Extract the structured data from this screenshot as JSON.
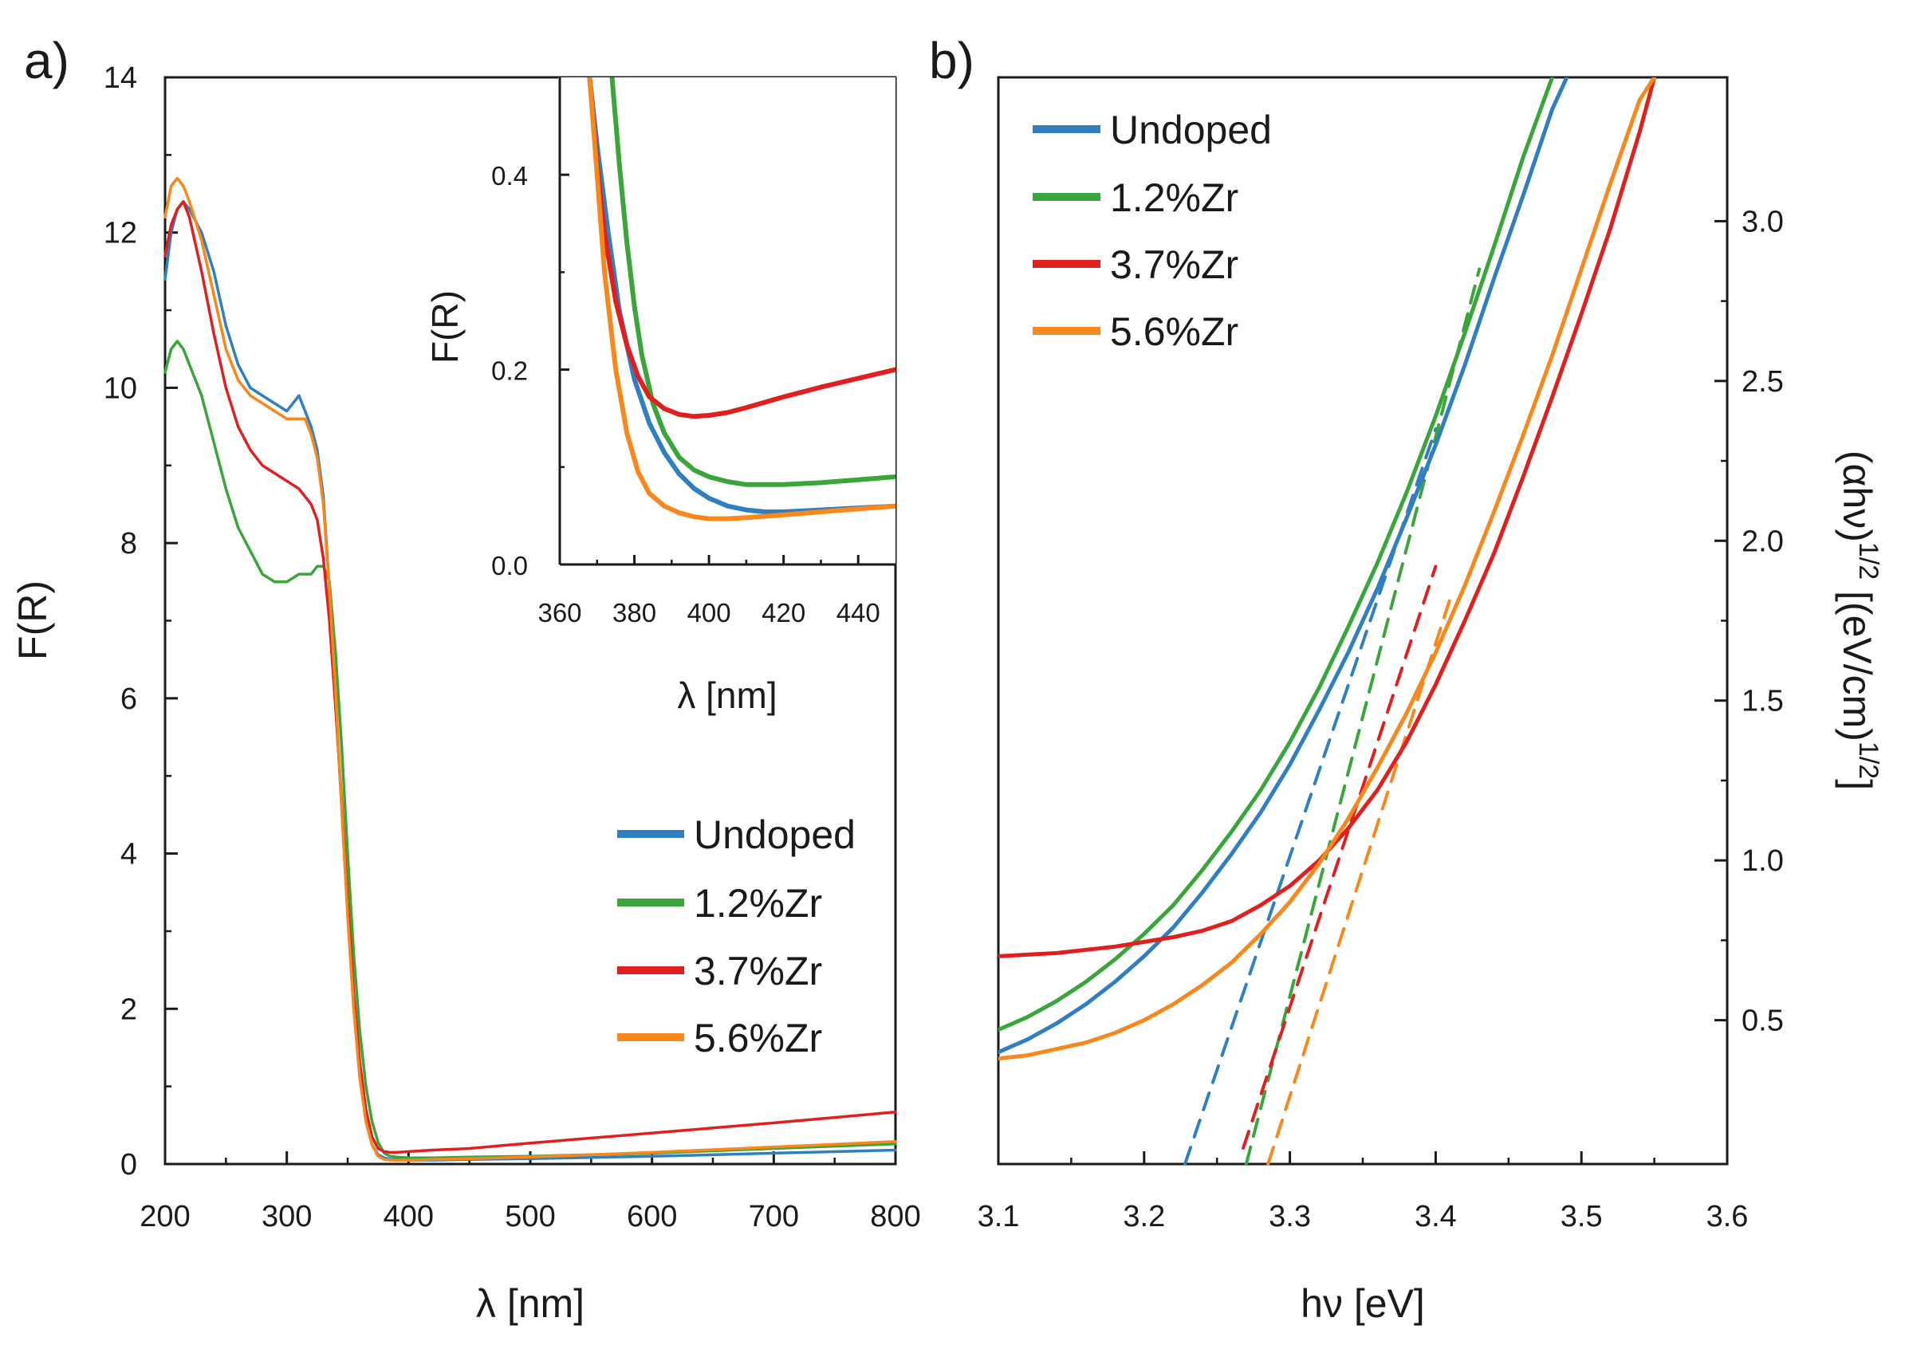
{
  "colors": {
    "undoped": "#2f7fc1",
    "zr12": "#3aa53a",
    "zr37": "#e0201f",
    "zr56": "#f8871c",
    "axis": "#1a1a1a"
  },
  "chart_data": [
    {
      "id": "panel-a",
      "panel_label": "a)",
      "type": "line",
      "xlabel": "λ [nm]",
      "ylabel": "F(R)",
      "xlim": [
        200,
        800
      ],
      "ylim": [
        0,
        14
      ],
      "xticks": [
        200,
        300,
        400,
        500,
        600,
        700,
        800
      ],
      "yticks": [
        0,
        2,
        4,
        6,
        8,
        10,
        12,
        14
      ],
      "legend_position": "bottom-right",
      "series": [
        {
          "name": "Undoped",
          "color_key": "undoped",
          "x": [
            200,
            205,
            210,
            215,
            220,
            230,
            240,
            250,
            260,
            270,
            280,
            290,
            300,
            305,
            310,
            315,
            320,
            325,
            330,
            335,
            340,
            345,
            350,
            355,
            360,
            365,
            370,
            375,
            380,
            385,
            390,
            400,
            420,
            450,
            500,
            600,
            700,
            800
          ],
          "y": [
            11.4,
            12.0,
            12.3,
            12.4,
            12.3,
            12.0,
            11.5,
            10.8,
            10.3,
            10.0,
            9.9,
            9.8,
            9.7,
            9.8,
            9.9,
            9.7,
            9.5,
            9.2,
            8.6,
            7.4,
            6.0,
            4.6,
            3.2,
            2.0,
            1.1,
            0.55,
            0.25,
            0.12,
            0.08,
            0.06,
            0.06,
            0.05,
            0.05,
            0.06,
            0.07,
            0.1,
            0.14,
            0.18
          ]
        },
        {
          "name": "1.2%Zr",
          "color_key": "zr12",
          "x": [
            200,
            205,
            210,
            215,
            220,
            230,
            240,
            250,
            260,
            270,
            280,
            290,
            300,
            310,
            320,
            325,
            330,
            335,
            340,
            345,
            350,
            355,
            360,
            365,
            370,
            375,
            380,
            385,
            390,
            400,
            420,
            450,
            500,
            600,
            700,
            800
          ],
          "y": [
            10.2,
            10.5,
            10.6,
            10.5,
            10.3,
            9.9,
            9.3,
            8.7,
            8.2,
            7.9,
            7.6,
            7.5,
            7.5,
            7.6,
            7.6,
            7.7,
            7.7,
            7.5,
            6.6,
            5.4,
            4.0,
            2.7,
            1.7,
            1.0,
            0.55,
            0.28,
            0.14,
            0.1,
            0.09,
            0.08,
            0.08,
            0.09,
            0.1,
            0.14,
            0.2,
            0.26
          ]
        },
        {
          "name": "3.7%Zr",
          "color_key": "zr37",
          "x": [
            200,
            205,
            210,
            215,
            220,
            230,
            240,
            250,
            260,
            270,
            280,
            290,
            300,
            310,
            320,
            325,
            330,
            335,
            340,
            345,
            350,
            355,
            360,
            365,
            370,
            375,
            380,
            385,
            390,
            400,
            420,
            450,
            500,
            600,
            700,
            800
          ],
          "y": [
            11.7,
            12.1,
            12.3,
            12.4,
            12.2,
            11.5,
            10.7,
            10.0,
            9.5,
            9.2,
            9.0,
            8.9,
            8.8,
            8.7,
            8.5,
            8.3,
            7.8,
            7.0,
            5.9,
            4.7,
            3.4,
            2.2,
            1.3,
            0.7,
            0.35,
            0.2,
            0.16,
            0.15,
            0.15,
            0.16,
            0.18,
            0.2,
            0.27,
            0.4,
            0.53,
            0.67
          ]
        },
        {
          "name": "5.6%Zr",
          "color_key": "zr56",
          "x": [
            200,
            205,
            210,
            215,
            220,
            230,
            240,
            250,
            260,
            270,
            280,
            290,
            300,
            310,
            315,
            320,
            325,
            330,
            335,
            340,
            345,
            350,
            355,
            360,
            365,
            370,
            375,
            380,
            385,
            390,
            400,
            420,
            450,
            500,
            600,
            700,
            800
          ],
          "y": [
            12.2,
            12.6,
            12.7,
            12.6,
            12.4,
            11.9,
            11.2,
            10.5,
            10.1,
            9.9,
            9.8,
            9.7,
            9.6,
            9.6,
            9.6,
            9.4,
            9.1,
            8.5,
            7.4,
            6.1,
            4.6,
            3.2,
            2.0,
            1.1,
            0.55,
            0.25,
            0.1,
            0.06,
            0.05,
            0.05,
            0.05,
            0.06,
            0.07,
            0.09,
            0.15,
            0.22,
            0.29
          ]
        }
      ]
    },
    {
      "id": "panel-a-inset",
      "type": "line",
      "xlabel": "λ [nm]",
      "ylabel": "F(R)",
      "xlim": [
        360,
        450
      ],
      "ylim": [
        0,
        0.5
      ],
      "xticks": [
        360,
        380,
        400,
        420,
        440
      ],
      "yticks": [
        0.0,
        0.2,
        0.4
      ],
      "series": [
        {
          "name": "Undoped",
          "color_key": "undoped",
          "x": [
            368,
            370,
            373,
            376,
            380,
            384,
            388,
            392,
            396,
            400,
            405,
            410,
            415,
            420,
            430,
            440,
            450
          ],
          "y": [
            0.5,
            0.43,
            0.34,
            0.26,
            0.19,
            0.145,
            0.115,
            0.093,
            0.078,
            0.068,
            0.06,
            0.056,
            0.054,
            0.054,
            0.056,
            0.058,
            0.06
          ]
        },
        {
          "name": "1.2%Zr",
          "color_key": "zr12",
          "x": [
            374,
            376,
            378,
            380,
            382,
            385,
            388,
            392,
            396,
            400,
            405,
            410,
            420,
            430,
            440,
            450
          ],
          "y": [
            0.5,
            0.41,
            0.33,
            0.265,
            0.215,
            0.165,
            0.135,
            0.11,
            0.097,
            0.09,
            0.085,
            0.082,
            0.082,
            0.084,
            0.087,
            0.09
          ]
        },
        {
          "name": "3.7%Zr",
          "color_key": "zr37",
          "x": [
            368,
            370,
            372,
            375,
            378,
            381,
            384,
            388,
            392,
            396,
            400,
            405,
            410,
            420,
            430,
            440,
            450
          ],
          "y": [
            0.5,
            0.41,
            0.34,
            0.27,
            0.225,
            0.193,
            0.172,
            0.16,
            0.154,
            0.152,
            0.153,
            0.156,
            0.161,
            0.172,
            0.182,
            0.191,
            0.2
          ]
        },
        {
          "name": "5.6%Zr",
          "color_key": "zr56",
          "x": [
            368,
            370,
            372,
            375,
            378,
            381,
            384,
            388,
            392,
            396,
            400,
            405,
            410,
            420,
            430,
            440,
            450
          ],
          "y": [
            0.5,
            0.4,
            0.3,
            0.2,
            0.135,
            0.095,
            0.073,
            0.06,
            0.053,
            0.049,
            0.047,
            0.047,
            0.048,
            0.051,
            0.054,
            0.057,
            0.06
          ]
        }
      ]
    },
    {
      "id": "panel-b",
      "panel_label": "b)",
      "type": "line",
      "xlabel": "hν [eV]",
      "ylabel": "(αhν)^1/2 [(eV/cm)^1/2]",
      "ylabel_parts": [
        "(αhν)",
        "1/2",
        " [(eV/cm)",
        "1/2",
        "]"
      ],
      "xlim": [
        3.1,
        3.6
      ],
      "ylim": [
        0.05,
        3.45
      ],
      "xticks": [
        3.1,
        3.2,
        3.3,
        3.4,
        3.5,
        3.6
      ],
      "xtick_labels": [
        "3.1",
        "3.2",
        "3.3",
        "3.4",
        "3.5",
        "3.6"
      ],
      "yticks": [
        0.5,
        1.0,
        1.5,
        2.0,
        2.5,
        3.0
      ],
      "ytick_labels": [
        "0.5",
        "1.0",
        "1.5",
        "2.0",
        "2.5",
        "3.0"
      ],
      "yaxis_side": "right",
      "legend_position": "top-left",
      "series": [
        {
          "name": "Undoped",
          "color_key": "undoped",
          "x": [
            3.1,
            3.12,
            3.14,
            3.16,
            3.18,
            3.2,
            3.22,
            3.24,
            3.26,
            3.28,
            3.3,
            3.32,
            3.34,
            3.36,
            3.38,
            3.4,
            3.42,
            3.44,
            3.46,
            3.48,
            3.49
          ],
          "y": [
            0.4,
            0.44,
            0.49,
            0.55,
            0.62,
            0.7,
            0.79,
            0.9,
            1.02,
            1.15,
            1.3,
            1.47,
            1.65,
            1.85,
            2.07,
            2.3,
            2.55,
            2.82,
            3.08,
            3.35,
            3.45
          ]
        },
        {
          "name": "1.2%Zr",
          "color_key": "zr12",
          "x": [
            3.1,
            3.12,
            3.14,
            3.16,
            3.18,
            3.2,
            3.22,
            3.24,
            3.26,
            3.28,
            3.3,
            3.32,
            3.34,
            3.36,
            3.38,
            3.4,
            3.42,
            3.44,
            3.46,
            3.48
          ],
          "y": [
            0.47,
            0.51,
            0.56,
            0.62,
            0.69,
            0.77,
            0.86,
            0.97,
            1.09,
            1.22,
            1.37,
            1.54,
            1.73,
            1.93,
            2.15,
            2.39,
            2.65,
            2.92,
            3.2,
            3.45
          ]
        },
        {
          "name": "3.7%Zr",
          "color_key": "zr37",
          "x": [
            3.1,
            3.14,
            3.18,
            3.2,
            3.22,
            3.24,
            3.26,
            3.28,
            3.3,
            3.32,
            3.34,
            3.36,
            3.38,
            3.4,
            3.42,
            3.44,
            3.46,
            3.48,
            3.5,
            3.52,
            3.54,
            3.55
          ],
          "y": [
            0.7,
            0.71,
            0.73,
            0.745,
            0.76,
            0.78,
            0.81,
            0.86,
            0.92,
            1.0,
            1.1,
            1.22,
            1.37,
            1.55,
            1.75,
            1.96,
            2.2,
            2.45,
            2.71,
            2.98,
            3.28,
            3.45
          ]
        },
        {
          "name": "5.6%Zr",
          "color_key": "zr56",
          "x": [
            3.1,
            3.12,
            3.14,
            3.16,
            3.18,
            3.2,
            3.22,
            3.24,
            3.26,
            3.28,
            3.3,
            3.32,
            3.34,
            3.36,
            3.38,
            3.4,
            3.42,
            3.44,
            3.46,
            3.48,
            3.5,
            3.52,
            3.54,
            3.55
          ],
          "y": [
            0.38,
            0.39,
            0.41,
            0.43,
            0.46,
            0.5,
            0.55,
            0.61,
            0.68,
            0.77,
            0.87,
            0.99,
            1.13,
            1.29,
            1.46,
            1.65,
            1.86,
            2.09,
            2.33,
            2.58,
            2.85,
            3.12,
            3.38,
            3.45
          ]
        }
      ],
      "fit_lines": [
        {
          "name": "Undoped fit",
          "color_key": "undoped",
          "x": [
            3.228,
            3.4
          ],
          "y": [
            0.05,
            2.35
          ]
        },
        {
          "name": "1.2%Zr fit",
          "color_key": "zr12",
          "x": [
            3.27,
            3.43
          ],
          "y": [
            0.05,
            2.85
          ]
        },
        {
          "name": "3.7%Zr fit",
          "color_key": "zr37",
          "x": [
            3.268,
            3.4
          ],
          "y": [
            0.1,
            1.92
          ]
        },
        {
          "name": "5.6%Zr fit",
          "color_key": "zr56",
          "x": [
            3.285,
            3.41
          ],
          "y": [
            0.05,
            1.82
          ]
        }
      ]
    }
  ]
}
